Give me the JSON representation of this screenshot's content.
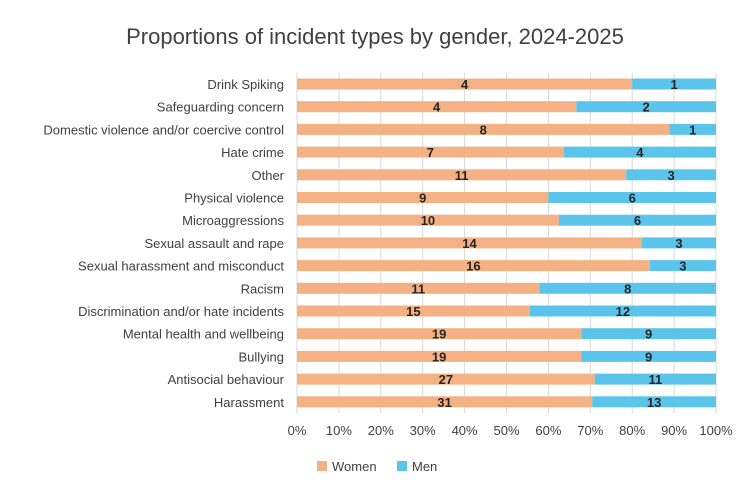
{
  "chart_data": {
    "type": "bar",
    "orientation": "horizontal",
    "stacking": "percent",
    "title": "Proportions of incident types by gender, 2024-2025",
    "categories": [
      "Drink Spiking",
      "Safeguarding concern",
      "Domestic violence and/or coercive control",
      "Hate crime",
      "Other",
      "Physical violence",
      "Microaggressions",
      "Sexual assault and rape",
      "Sexual harassment and misconduct",
      "Racism",
      "Discrimination and/or hate incidents",
      "Mental health and wellbeing",
      "Bullying",
      "Antisocial behaviour",
      "Harassment"
    ],
    "series": [
      {
        "name": "Women",
        "color": "#F4B183",
        "values": [
          4,
          4,
          8,
          7,
          11,
          9,
          10,
          14,
          16,
          11,
          15,
          19,
          19,
          27,
          31
        ]
      },
      {
        "name": "Men",
        "color": "#5BC4EA",
        "values": [
          1,
          2,
          1,
          4,
          3,
          6,
          6,
          3,
          3,
          8,
          12,
          9,
          9,
          11,
          13
        ]
      }
    ],
    "x_ticks": [
      "0%",
      "10%",
      "20%",
      "30%",
      "40%",
      "50%",
      "60%",
      "70%",
      "80%",
      "90%",
      "100%"
    ],
    "xlim": [
      0,
      100
    ],
    "grid": true,
    "legend_position": "bottom"
  }
}
